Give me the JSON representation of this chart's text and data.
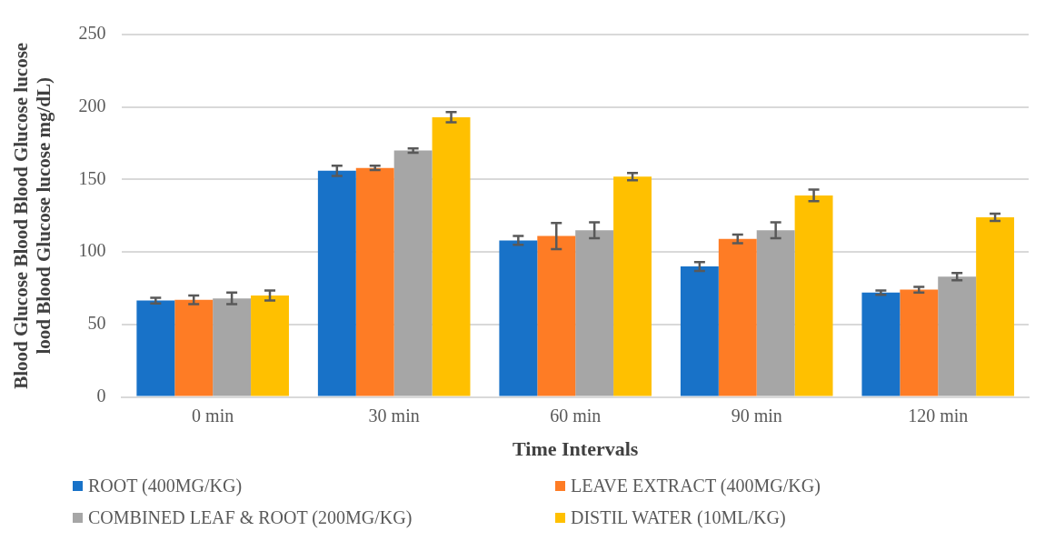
{
  "chart_data": {
    "type": "bar",
    "xlabel": "Time Intervals",
    "ylabel": "Blood Glucose Blood Blood Glucose lucose lood Blood Glucose lucose mg/dL)",
    "categories": [
      "0 min",
      "30 min",
      "60 min",
      "90 min",
      "120 min"
    ],
    "series": [
      {
        "name": "ROOT (400MG/KG)",
        "color": "#1872c8",
        "values": [
          66.5,
          156,
          108,
          90,
          72
        ],
        "errors": [
          2,
          3.5,
          3,
          3,
          1.5
        ]
      },
      {
        "name": "LEAVE EXTRACT (400MG/KG)",
        "color": "#fe7c25",
        "values": [
          67,
          158,
          111,
          109,
          74
        ],
        "errors": [
          3,
          1.5,
          9,
          3,
          2
        ]
      },
      {
        "name": "COMBINED LEAF & ROOT (200MG/KG)",
        "color": "#a6a6a6",
        "values": [
          68,
          170,
          115,
          115,
          83
        ],
        "errors": [
          4,
          1.5,
          5.5,
          5.5,
          2.5
        ]
      },
      {
        "name": "DISTIL WATER (10ML/KG)",
        "color": "#ffc000",
        "values": [
          70,
          193,
          152,
          139,
          124
        ],
        "errors": [
          3.5,
          3.5,
          2.5,
          4,
          2.5
        ]
      }
    ],
    "ylim": [
      0,
      250
    ],
    "yticks": [
      0,
      50,
      100,
      150,
      200,
      250
    ],
    "grid": "y",
    "legend": "bottom"
  }
}
